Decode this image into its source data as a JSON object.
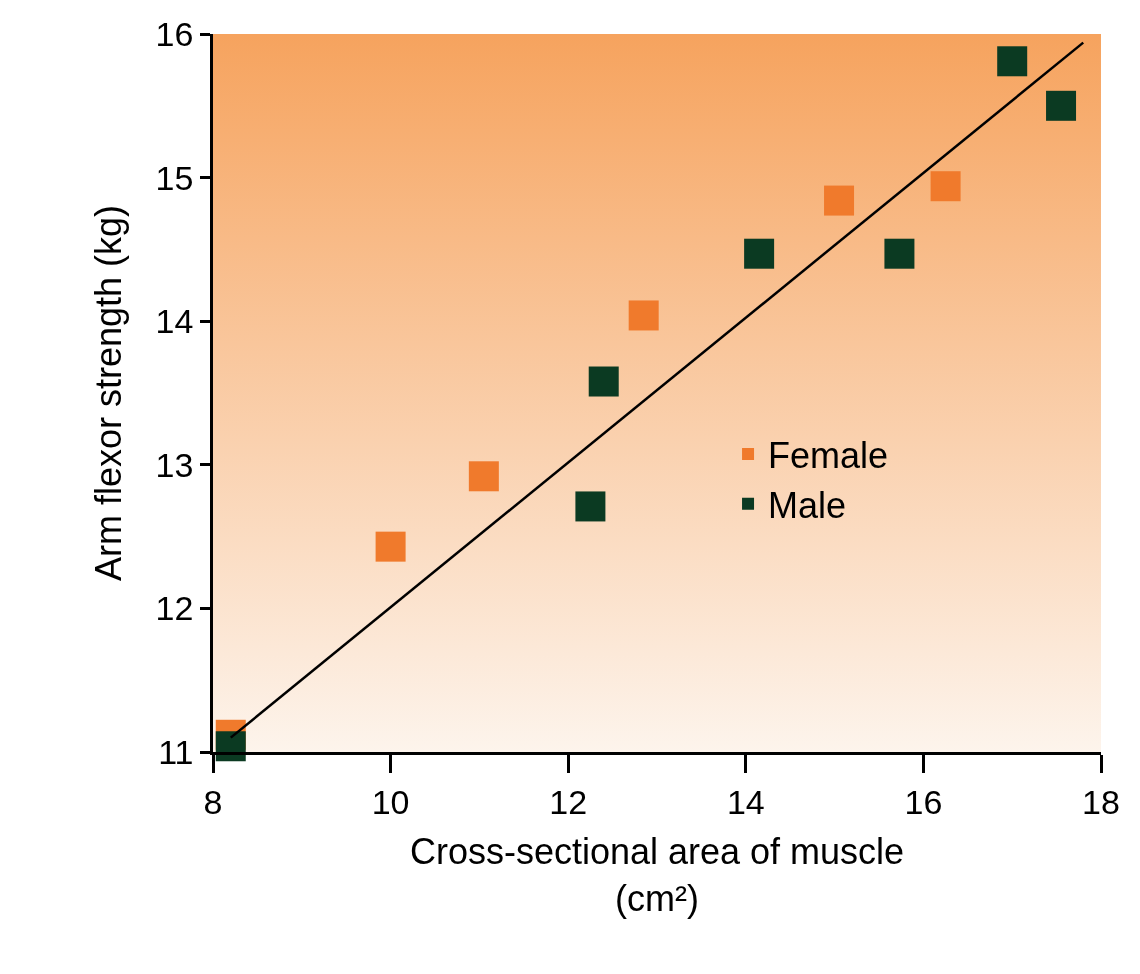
{
  "chart_data": {
    "type": "scatter",
    "xlabel": "Cross-sectional area of muscle\n(cm²)",
    "ylabel": "Arm flexor strength (kg)",
    "xlim": [
      8,
      18
    ],
    "xticks": [
      8,
      10,
      12,
      14,
      16,
      18
    ],
    "ylim": [
      11,
      16
    ],
    "yticks": [
      11,
      12,
      13,
      14,
      15,
      16
    ],
    "grid": false,
    "legend": "right",
    "marker": "square",
    "series": [
      {
        "name": "Female",
        "color": "#f07a2c",
        "x": [
          8.2,
          10.0,
          11.05,
          12.85,
          15.05,
          16.25
        ],
        "values": [
          11.12,
          12.43,
          12.92,
          14.04,
          14.84,
          14.94
        ]
      },
      {
        "name": "Male",
        "color": "#0b3a22",
        "x": [
          8.2,
          12.25,
          12.4,
          14.15,
          15.73,
          17.0,
          17.55
        ],
        "values": [
          11.04,
          12.71,
          13.58,
          14.47,
          14.47,
          15.81,
          15.5
        ]
      },
      {
        "type": "line",
        "marker": "none",
        "color": "#000000",
        "x": [
          8.2,
          17.8
        ],
        "values": [
          11.1,
          15.94
        ]
      }
    ]
  }
}
